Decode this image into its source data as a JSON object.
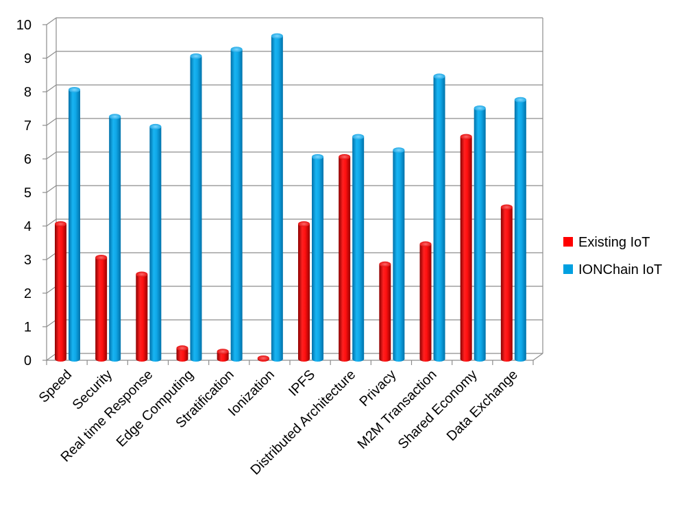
{
  "chart_data": {
    "type": "bar",
    "title": "",
    "xlabel": "",
    "ylabel": "",
    "ylim": [
      0,
      10
    ],
    "yticks": [
      0,
      1,
      2,
      3,
      4,
      5,
      6,
      7,
      8,
      9,
      10
    ],
    "grid": true,
    "legend_position": "right",
    "categories": [
      "Speed",
      "Security",
      "Real time Response",
      "Edge Computing",
      "Stratification",
      "Ionization",
      "IPFS",
      "Distributed Architecture",
      "Privacy",
      "M2M Transaction",
      "Shared Economy",
      "Data Exchange"
    ],
    "series": [
      {
        "name": "Existing IoT",
        "color": "#ff0000",
        "values": [
          4,
          3,
          2.5,
          0.3,
          0.2,
          0,
          4,
          6,
          2.8,
          3.4,
          6.6,
          4.5
        ]
      },
      {
        "name": "IONChain IoT",
        "color": "#00a0e0",
        "values": [
          8,
          7.2,
          6.9,
          9,
          9.2,
          9.6,
          6,
          6.6,
          6.2,
          8.4,
          7.45,
          7.7
        ]
      }
    ]
  }
}
